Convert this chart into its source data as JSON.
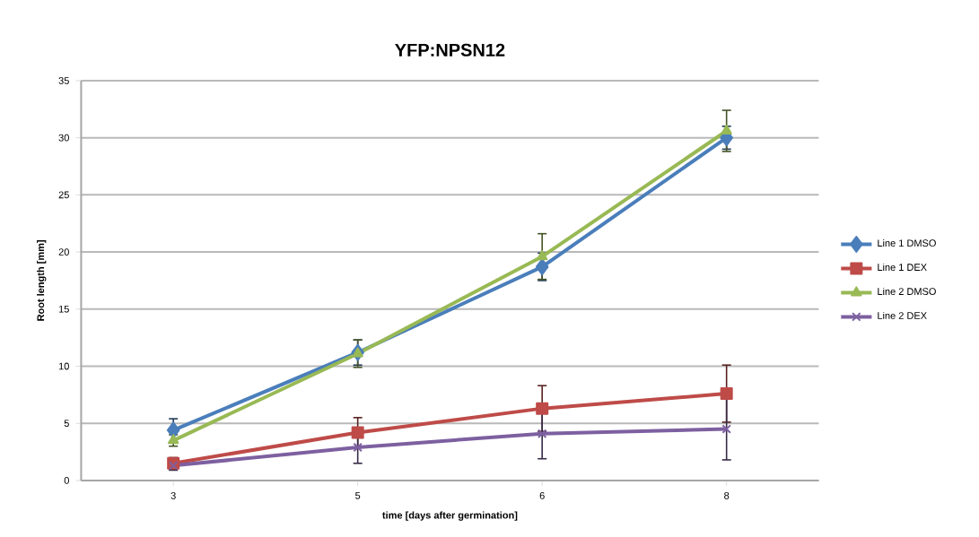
{
  "chart_data": {
    "type": "line",
    "title": "YFP:NPSN12",
    "xlabel": "time [days after germination]",
    "ylabel": "Root length [mm]",
    "categories": [
      "3",
      "5",
      "6",
      "8"
    ],
    "series": [
      {
        "name": "Line 1 DMSO",
        "color": "#4a7ebb",
        "marker": "diamond",
        "values": [
          4.4,
          11.2,
          18.7,
          30.0
        ],
        "errors": [
          1.0,
          1.1,
          1.2,
          1.0
        ]
      },
      {
        "name": "Line 1 DEX",
        "color": "#be4b48",
        "marker": "square",
        "values": [
          1.5,
          4.2,
          6.3,
          7.6
        ],
        "errors": [
          0.5,
          1.3,
          2.0,
          2.5
        ]
      },
      {
        "name": "Line 2 DMSO",
        "color": "#98b954",
        "marker": "triangle",
        "values": [
          3.5,
          11.1,
          19.6,
          30.6
        ],
        "errors": [
          0.5,
          1.2,
          2.0,
          1.8
        ]
      },
      {
        "name": "Line 2 DEX",
        "color": "#7d60a0",
        "marker": "cross",
        "values": [
          1.3,
          2.9,
          4.1,
          4.5
        ],
        "errors": [
          0.4,
          1.4,
          2.2,
          2.7
        ]
      }
    ],
    "ylim": [
      0,
      35
    ],
    "yticks": [
      0,
      5,
      10,
      15,
      20,
      25,
      30,
      35
    ],
    "grid": "y",
    "legend": "right",
    "line_style": "solid"
  }
}
